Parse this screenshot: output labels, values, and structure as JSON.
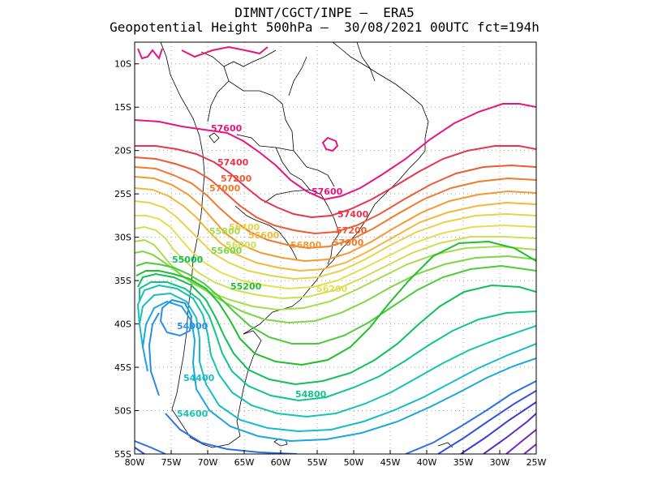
{
  "title": {
    "line1": "DIMNT/CGCT/INPE –  ERA5",
    "line2": "Geopotential Height 500hPa –  30/08/2021 00UTC fct=194h"
  },
  "axes": {
    "x_ticks": [
      "80W",
      "75W",
      "70W",
      "65W",
      "60W",
      "55W",
      "50W",
      "45W",
      "40W",
      "35W",
      "30W",
      "25W"
    ],
    "y_ticks": [
      "10S",
      "15S",
      "20S",
      "25S",
      "30S",
      "35S",
      "40S",
      "45S",
      "50S",
      "55S"
    ]
  },
  "contour_colors": {
    "c57600": "#e8157d",
    "c57400": "#e8344f",
    "c57200": "#ee5a35",
    "c57000": "#f07a2e",
    "c56800": "#f29a33",
    "c56600": "#f0b83c",
    "c56400": "#e8d24a",
    "c56200": "#e5de50",
    "c56000": "#cde055",
    "c55800": "#a8dc4f",
    "c55600": "#7ed645",
    "c55400": "#4ccb3a",
    "c55200": "#1fbf2a",
    "c55000": "#12c05a",
    "c54800": "#12c48c",
    "c54600": "#14c4b0",
    "c54400": "#16bcc8",
    "c54200": "#1ca6dc",
    "c54000": "#2a8ee8",
    "c53800": "#2f70e0",
    "c53600": "#3555d8",
    "c53400": "#3c3cd0",
    "c53200": "#5a2fc8",
    "c53000": "#7a24c0"
  },
  "labels": {
    "l57600a": "57600",
    "l57600b": "57600",
    "l57400a": "57400",
    "l57400b": "57400",
    "l57200a": "57200",
    "l57200b": "57200",
    "l57000a": "57000",
    "l57000b": "57000",
    "l56800": "56800",
    "l56600": "56600",
    "l56400": "56400",
    "l56200": "56200",
    "l56000": "56000",
    "l55800": "55800",
    "l55600": "55600",
    "l55200": "55200",
    "l55000": "55000",
    "l54800": "54800",
    "l54600": "54600",
    "l54400": "54400",
    "l54000": "54000"
  }
}
